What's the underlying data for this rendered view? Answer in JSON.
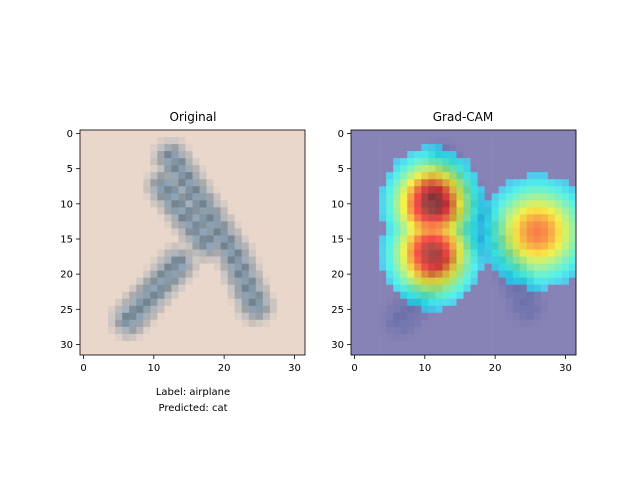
{
  "chart_data": [
    {
      "type": "heatmap",
      "title": "Original",
      "xlim": [
        -0.5,
        31.5
      ],
      "ylim": [
        31.5,
        -0.5
      ],
      "xticks": [
        0,
        10,
        20,
        30
      ],
      "yticks": [
        0,
        5,
        10,
        15,
        20,
        25,
        30
      ],
      "grid": false,
      "image_size": [
        32,
        32
      ],
      "caption": [
        "Label: airplane",
        "Predicted: cat"
      ]
    },
    {
      "type": "heatmap",
      "title": "Grad-CAM",
      "xlim": [
        -0.5,
        31.5
      ],
      "ylim": [
        31.5,
        -0.5
      ],
      "xticks": [
        0,
        10,
        20,
        30
      ],
      "yticks": [
        0,
        5,
        10,
        15,
        20,
        25,
        30
      ],
      "grid": false,
      "image_size": [
        32,
        32
      ],
      "colormap": "jet",
      "overlay_alpha": 0.5,
      "hotspots": [
        {
          "x": 11,
          "y": 10,
          "intensity": 1.0
        },
        {
          "x": 11,
          "y": 17,
          "intensity": 0.95
        },
        {
          "x": 26,
          "y": 14,
          "intensity": 0.7
        }
      ]
    }
  ],
  "colors": {
    "background_pink": "#e9d7cb",
    "plane_blue": "#8fa4b6",
    "plane_dark": "#5f6b73",
    "cam_low": "#6b6bb0"
  }
}
